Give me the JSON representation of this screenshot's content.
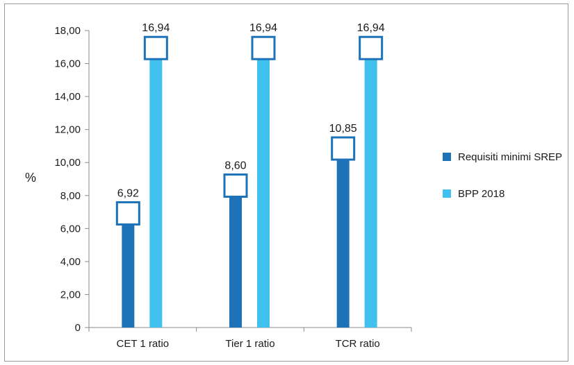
{
  "chart_data": {
    "type": "bar",
    "categories": [
      "CET 1 ratio",
      "Tier 1 ratio",
      "TCR ratio"
    ],
    "series": [
      {
        "name": "Requisiti minimi SREP",
        "values": [
          6.92,
          8.6,
          10.85
        ],
        "labels": [
          "6,92",
          "8,60",
          "10,85"
        ],
        "color": "#1d72b8"
      },
      {
        "name": "BPP 2018",
        "values": [
          16.94,
          16.94,
          16.94
        ],
        "labels": [
          "16,94",
          "16,94",
          "16,94"
        ],
        "color": "#3fc0ef"
      }
    ],
    "ylabel": "%",
    "ylim": [
      0,
      18
    ],
    "yticks": [
      {
        "value": 0,
        "label": "0"
      },
      {
        "value": 2,
        "label": "2,00"
      },
      {
        "value": 4,
        "label": "4,00"
      },
      {
        "value": 6,
        "label": "6,00"
      },
      {
        "value": 8,
        "label": "8,00"
      },
      {
        "value": 10,
        "label": "10,00"
      },
      {
        "value": 12,
        "label": "12,00"
      },
      {
        "value": 14,
        "label": "14,00"
      },
      {
        "value": 16,
        "label": "16,00"
      },
      {
        "value": 18,
        "label": "18,00"
      }
    ],
    "grid": false,
    "legend_position": "right",
    "marker_color": "#1d72b8"
  }
}
